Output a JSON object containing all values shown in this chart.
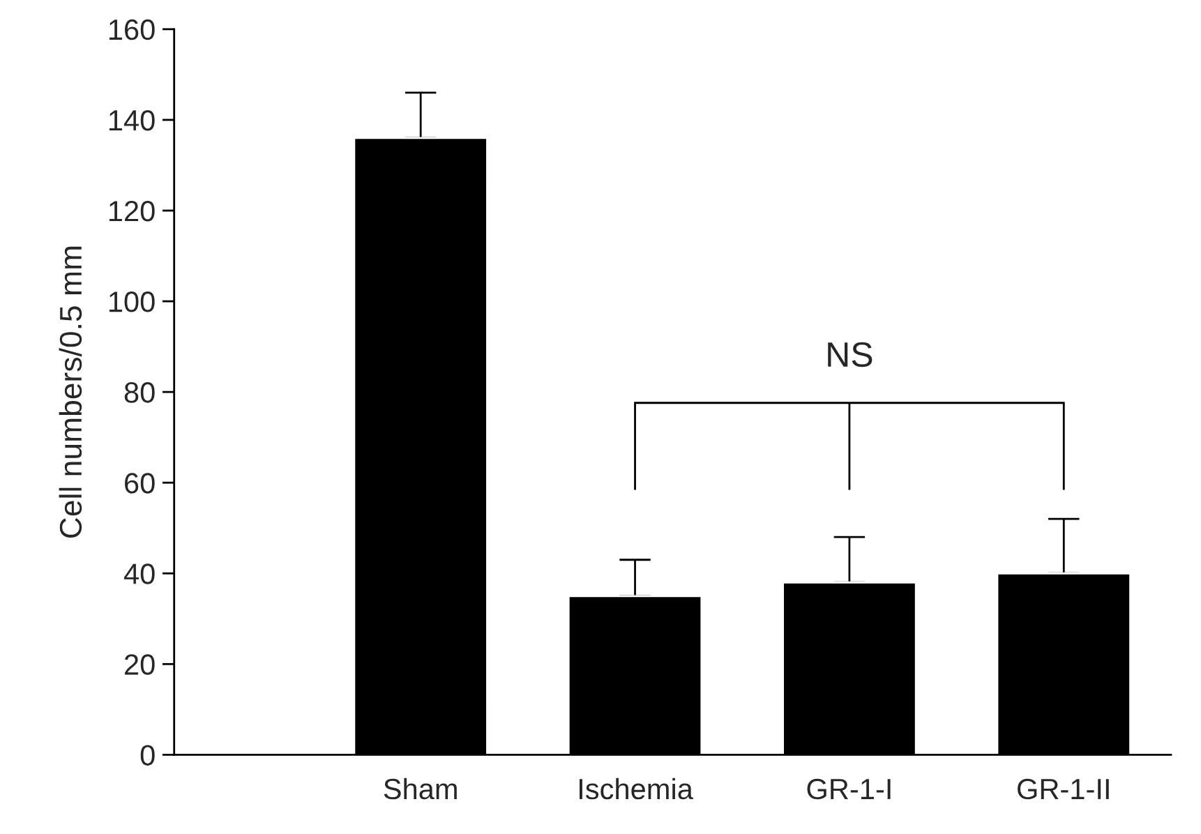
{
  "chart_data": {
    "type": "bar",
    "ylabel": "Cell numbers/0.5 mm",
    "categories": [
      "Sham",
      "Ischemia",
      "GR-1-I",
      "GR-1-II"
    ],
    "values": [
      136,
      35,
      38,
      40
    ],
    "errors": [
      [
        136,
        146
      ],
      [
        35,
        43
      ],
      [
        38,
        48
      ],
      [
        40,
        52
      ]
    ],
    "color": "#000000",
    "ylim": [
      0,
      160
    ],
    "yticks": [
      0,
      20,
      40,
      60,
      80,
      100,
      120,
      140,
      160
    ],
    "annotations": [
      "NS"
    ],
    "grid": false,
    "legend": false
  }
}
